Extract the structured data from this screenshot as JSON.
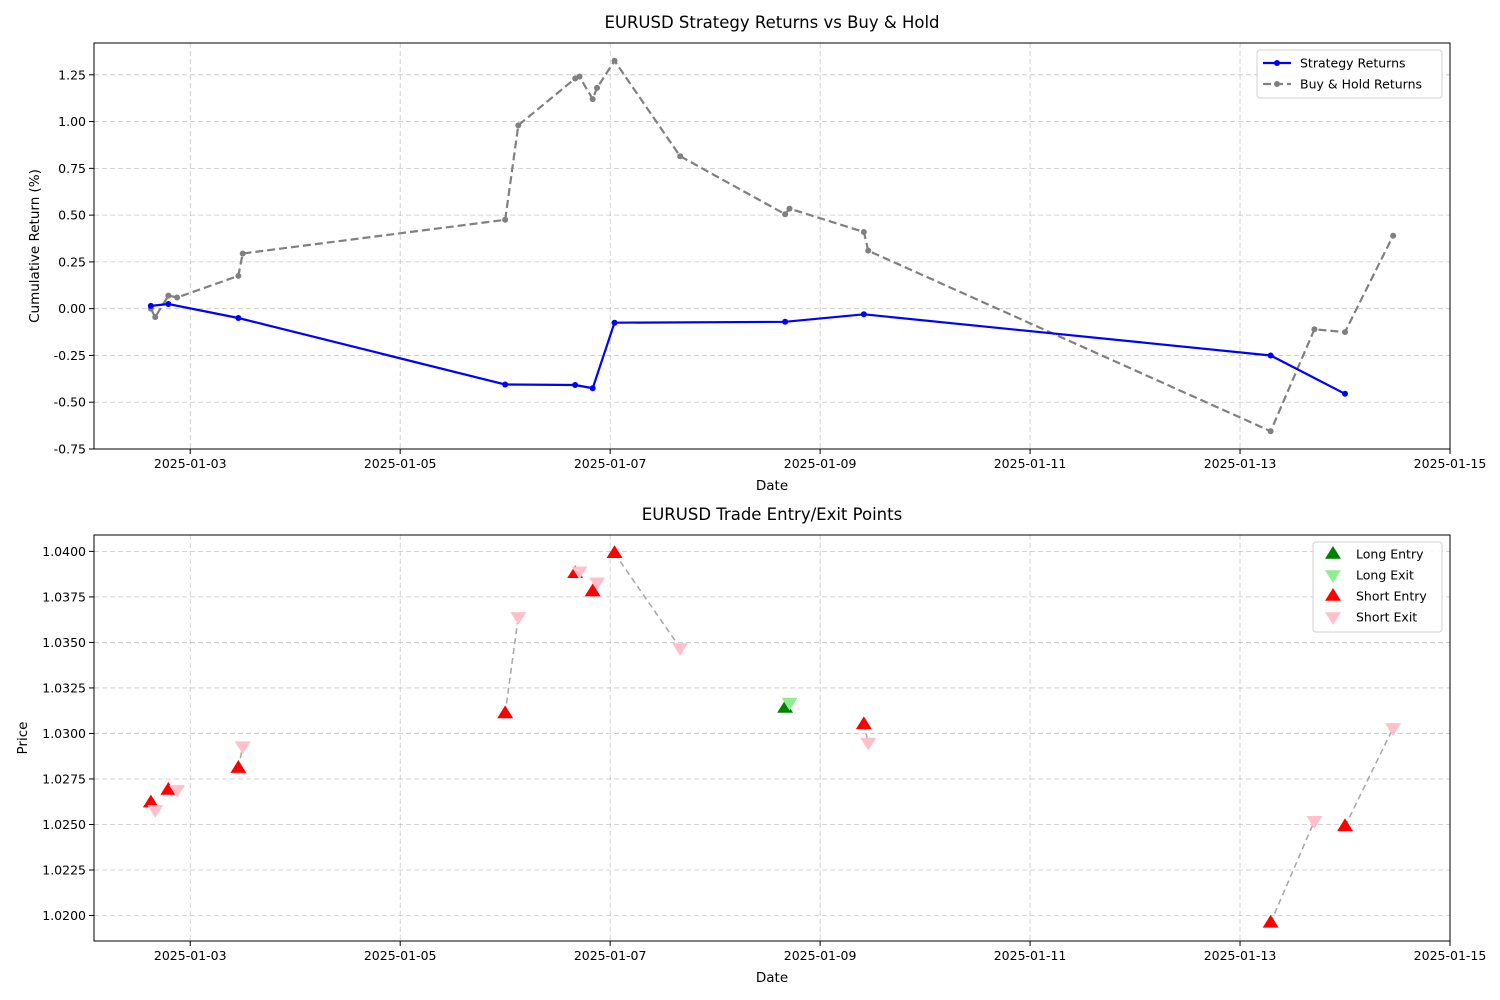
{
  "chart_data": [
    {
      "type": "line",
      "title": "EURUSD Strategy Returns vs Buy & Hold",
      "xlabel": "Date",
      "ylabel": "Cumulative Return (%)",
      "x_axis": "date",
      "xlim": [
        "2025-01-02 02:00",
        "2025-01-15 00:00"
      ],
      "ylim": [
        -0.75,
        1.42
      ],
      "x_ticks": [
        "2025-01-03",
        "2025-01-05",
        "2025-01-07",
        "2025-01-09",
        "2025-01-11",
        "2025-01-13",
        "2025-01-15"
      ],
      "y_ticks": [
        "-0.75",
        "-0.50",
        "-0.25",
        "0.00",
        "0.25",
        "0.50",
        "0.75",
        "1.00",
        "1.25"
      ],
      "grid": true,
      "legend_position": "top-right",
      "series": [
        {
          "name": "Strategy Returns",
          "color": "#0000ff",
          "style": "solid",
          "points": [
            {
              "x": "2025-01-02 15:00",
              "y": 0.015
            },
            {
              "x": "2025-01-02 19:00",
              "y": 0.025
            },
            {
              "x": "2025-01-03 11:00",
              "y": -0.05
            },
            {
              "x": "2025-01-06 00:00",
              "y": -0.405
            },
            {
              "x": "2025-01-06 16:00",
              "y": -0.408
            },
            {
              "x": "2025-01-06 20:00",
              "y": -0.425
            },
            {
              "x": "2025-01-07 01:00",
              "y": -0.075
            },
            {
              "x": "2025-01-08 16:00",
              "y": -0.07
            },
            {
              "x": "2025-01-09 10:00",
              "y": -0.03
            },
            {
              "x": "2025-01-13 07:00",
              "y": -0.25
            },
            {
              "x": "2025-01-14 00:00",
              "y": -0.455
            }
          ]
        },
        {
          "name": "Buy & Hold Returns",
          "color": "#808080",
          "style": "dashed",
          "points": [
            {
              "x": "2025-01-02 15:00",
              "y": 0.0
            },
            {
              "x": "2025-01-02 16:00",
              "y": -0.045
            },
            {
              "x": "2025-01-02 19:00",
              "y": 0.07
            },
            {
              "x": "2025-01-02 21:00",
              "y": 0.06
            },
            {
              "x": "2025-01-03 11:00",
              "y": 0.175
            },
            {
              "x": "2025-01-03 12:00",
              "y": 0.295
            },
            {
              "x": "2025-01-06 00:00",
              "y": 0.475
            },
            {
              "x": "2025-01-06 03:00",
              "y": 0.98
            },
            {
              "x": "2025-01-06 16:00",
              "y": 1.23
            },
            {
              "x": "2025-01-06 17:00",
              "y": 1.24
            },
            {
              "x": "2025-01-06 20:00",
              "y": 1.12
            },
            {
              "x": "2025-01-06 21:00",
              "y": 1.18
            },
            {
              "x": "2025-01-07 01:00",
              "y": 1.325
            },
            {
              "x": "2025-01-07 16:00",
              "y": 0.815
            },
            {
              "x": "2025-01-08 16:00",
              "y": 0.505
            },
            {
              "x": "2025-01-08 17:00",
              "y": 0.535
            },
            {
              "x": "2025-01-09 10:00",
              "y": 0.41
            },
            {
              "x": "2025-01-09 11:00",
              "y": 0.31
            },
            {
              "x": "2025-01-13 07:00",
              "y": -0.655
            },
            {
              "x": "2025-01-13 17:00",
              "y": -0.11
            },
            {
              "x": "2025-01-14 00:00",
              "y": -0.125
            },
            {
              "x": "2025-01-14 11:00",
              "y": 0.39
            }
          ]
        }
      ]
    },
    {
      "type": "scatter",
      "title": "EURUSD Trade Entry/Exit Points",
      "xlabel": "Date",
      "ylabel": "Price",
      "x_axis": "date",
      "xlim": [
        "2025-01-02 02:00",
        "2025-01-15 00:00"
      ],
      "ylim": [
        1.0186,
        1.0409
      ],
      "x_ticks": [
        "2025-01-03",
        "2025-01-05",
        "2025-01-07",
        "2025-01-09",
        "2025-01-11",
        "2025-01-13",
        "2025-01-15"
      ],
      "y_ticks": [
        "1.0200",
        "1.0225",
        "1.0250",
        "1.0275",
        "1.0300",
        "1.0325",
        "1.0350",
        "1.0375",
        "1.0400"
      ],
      "grid": true,
      "legend_position": "top-right",
      "legend": [
        {
          "name": "Long Entry",
          "color": "#008000",
          "marker": "triangle-up"
        },
        {
          "name": "Long Exit",
          "color": "#90ee90",
          "marker": "triangle-down"
        },
        {
          "name": "Short Entry",
          "color": "#ff0000",
          "marker": "triangle-up"
        },
        {
          "name": "Short Exit",
          "color": "#ffc0cb",
          "marker": "triangle-down"
        }
      ],
      "connector_color": "#aaaaaa",
      "trades": [
        {
          "side": "Short",
          "entry": {
            "x": "2025-01-02 15:00",
            "y": 1.0262
          },
          "exit": {
            "x": "2025-01-02 16:00",
            "y": 1.0258
          }
        },
        {
          "side": "Short",
          "entry": {
            "x": "2025-01-02 19:00",
            "y": 1.0269
          },
          "exit": {
            "x": "2025-01-02 21:00",
            "y": 1.0269
          }
        },
        {
          "side": "Short",
          "entry": {
            "x": "2025-01-03 11:00",
            "y": 1.0281
          },
          "exit": {
            "x": "2025-01-03 12:00",
            "y": 1.0293
          }
        },
        {
          "side": "Short",
          "entry": {
            "x": "2025-01-06 00:00",
            "y": 1.0311
          },
          "exit": {
            "x": "2025-01-06 03:00",
            "y": 1.0364
          }
        },
        {
          "side": "Short",
          "entry": {
            "x": "2025-01-06 16:00",
            "y": 1.0388
          },
          "exit": {
            "x": "2025-01-06 17:00",
            "y": 1.0389
          }
        },
        {
          "side": "Short",
          "entry": {
            "x": "2025-01-06 20:00",
            "y": 1.0378
          },
          "exit": {
            "x": "2025-01-06 21:00",
            "y": 1.0383
          }
        },
        {
          "side": "Short",
          "entry": {
            "x": "2025-01-07 01:00",
            "y": 1.0399
          },
          "exit": {
            "x": "2025-01-07 16:00",
            "y": 1.0347
          }
        },
        {
          "side": "Long",
          "entry": {
            "x": "2025-01-08 16:00",
            "y": 1.0314
          },
          "exit": {
            "x": "2025-01-08 17:00",
            "y": 1.0317
          }
        },
        {
          "side": "Short",
          "entry": {
            "x": "2025-01-09 10:00",
            "y": 1.0305
          },
          "exit": {
            "x": "2025-01-09 11:00",
            "y": 1.0295
          }
        },
        {
          "side": "Short",
          "entry": {
            "x": "2025-01-13 07:00",
            "y": 1.0196
          },
          "exit": {
            "x": "2025-01-13 17:00",
            "y": 1.0252
          }
        },
        {
          "side": "Short",
          "entry": {
            "x": "2025-01-14 00:00",
            "y": 1.0249
          },
          "exit": {
            "x": "2025-01-14 11:00",
            "y": 1.0303
          }
        }
      ]
    }
  ]
}
